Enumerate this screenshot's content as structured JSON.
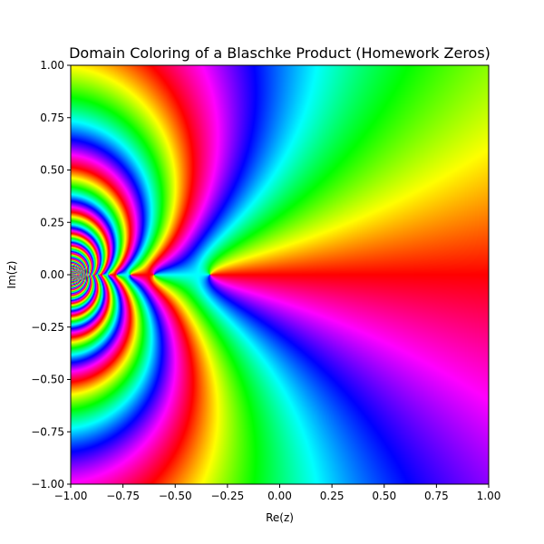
{
  "chart_data": {
    "type": "heatmap",
    "title": "Domain Coloring of a Blaschke Product (Homework Zeros)",
    "xlabel": "Re(z)",
    "ylabel": "Im(z)",
    "xlim": [
      -1.0,
      1.0
    ],
    "ylim": [
      -1.0,
      1.0
    ],
    "xticks": [
      -1.0,
      -0.75,
      -0.5,
      -0.25,
      0.0,
      0.25,
      0.5,
      0.75,
      1.0
    ],
    "yticks": [
      -1.0,
      -0.75,
      -0.5,
      -0.25,
      0.0,
      0.25,
      0.5,
      0.75,
      1.0
    ],
    "xtick_labels": [
      "−1.00",
      "−0.75",
      "−0.50",
      "−0.25",
      "0.00",
      "0.25",
      "0.50",
      "0.75",
      "1.00"
    ],
    "ytick_labels": [
      "−1.00",
      "−0.75",
      "−0.50",
      "−0.25",
      "0.00",
      "0.25",
      "0.50",
      "0.75",
      "1.00"
    ],
    "colormap": "hsv (hue = arg f(z))",
    "zeros_re": [
      -0.333,
      -0.6,
      -0.714,
      -0.778,
      -0.818,
      -0.846,
      -0.867,
      -0.882,
      -0.895,
      -0.905,
      -0.913,
      -0.92,
      -0.926,
      -0.931,
      -0.935,
      -0.939,
      -0.943,
      -0.946,
      -0.949,
      -0.951,
      -0.953,
      -0.956,
      -0.958,
      -0.959,
      -0.961
    ],
    "zeros_im": 0.0,
    "grid": false
  }
}
